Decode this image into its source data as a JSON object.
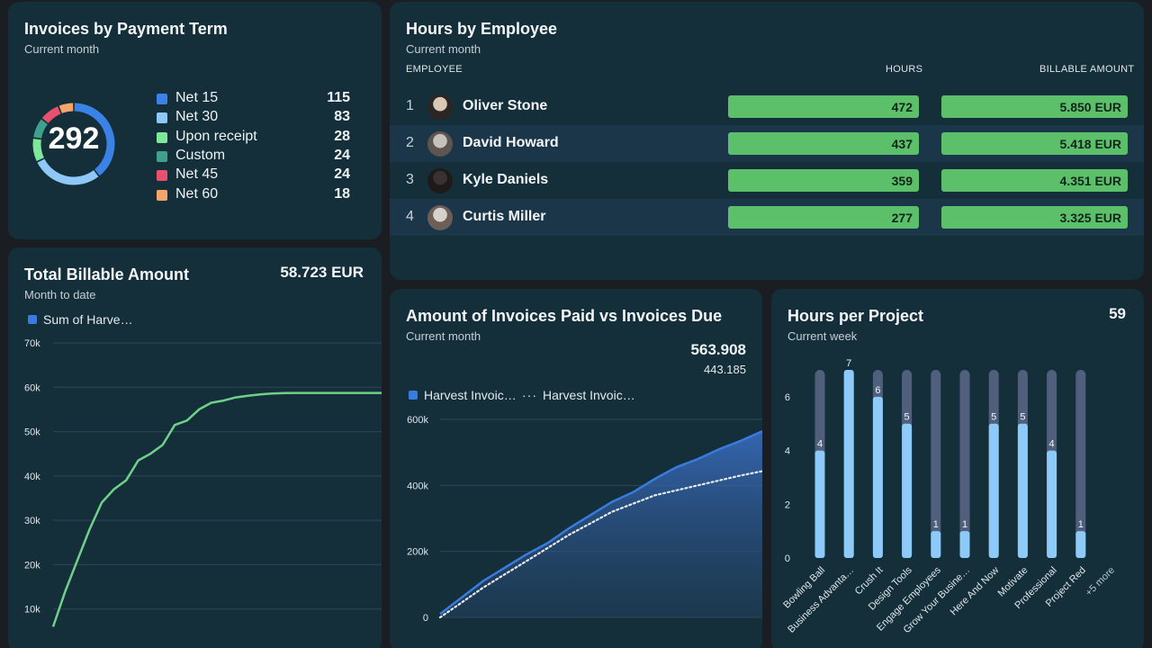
{
  "payment_term": {
    "title": "Invoices by Payment Term",
    "subtitle": "Current month",
    "total": "292",
    "items": [
      {
        "label": "Net 15",
        "value": "115",
        "color": "#3b82e6"
      },
      {
        "label": "Net 30",
        "value": "83",
        "color": "#8ec8f8"
      },
      {
        "label": "Upon receipt",
        "value": "28",
        "color": "#7ee89a"
      },
      {
        "label": "Custom",
        "value": "24",
        "color": "#3fa08e"
      },
      {
        "label": "Net 45",
        "value": "24",
        "color": "#e8506e"
      },
      {
        "label": "Net 60",
        "value": "18",
        "color": "#f4a66a"
      }
    ]
  },
  "hours_by_employee": {
    "title": "Hours by Employee",
    "subtitle": "Current month",
    "col_employee": "EMPLOYEE",
    "col_hours": "HOURS",
    "col_billable": "BILLABLE AMOUNT",
    "rows": [
      {
        "rank": "1",
        "name": "Oliver Stone",
        "hours": "472",
        "amount": "5.850 EUR",
        "hours_pct": 100,
        "amount_pct": 100
      },
      {
        "rank": "2",
        "name": "David Howard",
        "hours": "437",
        "amount": "5.418 EUR",
        "hours_pct": 100,
        "amount_pct": 100
      },
      {
        "rank": "3",
        "name": "Kyle Daniels",
        "hours": "359",
        "amount": "4.351 EUR",
        "hours_pct": 100,
        "amount_pct": 100
      },
      {
        "rank": "4",
        "name": "Curtis Miller",
        "hours": "277",
        "amount": "3.325 EUR",
        "hours_pct": 100,
        "amount_pct": 100
      }
    ]
  },
  "billable": {
    "title": "Total Billable Amount",
    "subtitle": "Month to date",
    "value": "58.723 EUR",
    "legend": "Sum of Harve…"
  },
  "paid_vs_due": {
    "title": "Amount of Invoices Paid vs Invoices Due",
    "subtitle": "Current month",
    "value_main": "563.908",
    "value_secondary": "443.185",
    "legend_paid": "Harvest Invoic…",
    "legend_due": "Harvest Invoic…"
  },
  "hours_per_project": {
    "title": "Hours per Project",
    "subtitle": "Current week",
    "total": "59"
  },
  "chart_data": [
    {
      "type": "line",
      "title": "Total Billable Amount",
      "series": [
        {
          "name": "Sum of Harve…",
          "color": "#6fd08a",
          "x": [
            1,
            2,
            3,
            4,
            5,
            6,
            7,
            8,
            9,
            10,
            11,
            12,
            13,
            14,
            15,
            16,
            17,
            18,
            19,
            20,
            21,
            22,
            23,
            24,
            25,
            26,
            27,
            28
          ],
          "values": [
            6000,
            14000,
            21000,
            28000,
            34000,
            37000,
            39000,
            43500,
            45000,
            47000,
            51500,
            52500,
            55000,
            56500,
            57000,
            57700,
            58100,
            58400,
            58600,
            58700,
            58720,
            58723,
            58723,
            58723,
            58723,
            58723,
            58723,
            58723
          ]
        }
      ],
      "yticks": [
        "10k",
        "20k",
        "30k",
        "40k",
        "50k",
        "60k",
        "70k"
      ],
      "ylim": [
        0,
        70000
      ]
    },
    {
      "type": "area",
      "title": "Amount of Invoices Paid vs Invoices Due",
      "series": [
        {
          "name": "Harvest Invoic…",
          "style": "area",
          "color": "#3a7be0",
          "values": [
            10000,
            60000,
            110000,
            150000,
            190000,
            225000,
            270000,
            310000,
            350000,
            380000,
            420000,
            455000,
            480000,
            510000,
            535000,
            563908
          ]
        },
        {
          "name": "Harvest Invoic…",
          "style": "dotted",
          "color": "#e6edf2",
          "values": [
            0,
            45000,
            90000,
            130000,
            170000,
            210000,
            250000,
            285000,
            320000,
            345000,
            370000,
            385000,
            400000,
            415000,
            430000,
            443185
          ]
        }
      ],
      "yticks": [
        "0",
        "200k",
        "400k",
        "600k"
      ],
      "ylim": [
        0,
        600000
      ]
    },
    {
      "type": "bar",
      "title": "Hours per Project",
      "categories": [
        "Bowling Ball",
        "Business Advanta…",
        "Crush It",
        "Design Tools",
        "Engage Employees",
        "Grow Your Busine…",
        "Here And Now",
        "Motivate",
        "Professional",
        "Project Red"
      ],
      "values": [
        4,
        7,
        6,
        5,
        1,
        1,
        5,
        5,
        4,
        1
      ],
      "extra_label": "+5 more",
      "yticks": [
        "0",
        "2",
        "4",
        "6"
      ],
      "ylim": [
        0,
        7
      ]
    }
  ]
}
